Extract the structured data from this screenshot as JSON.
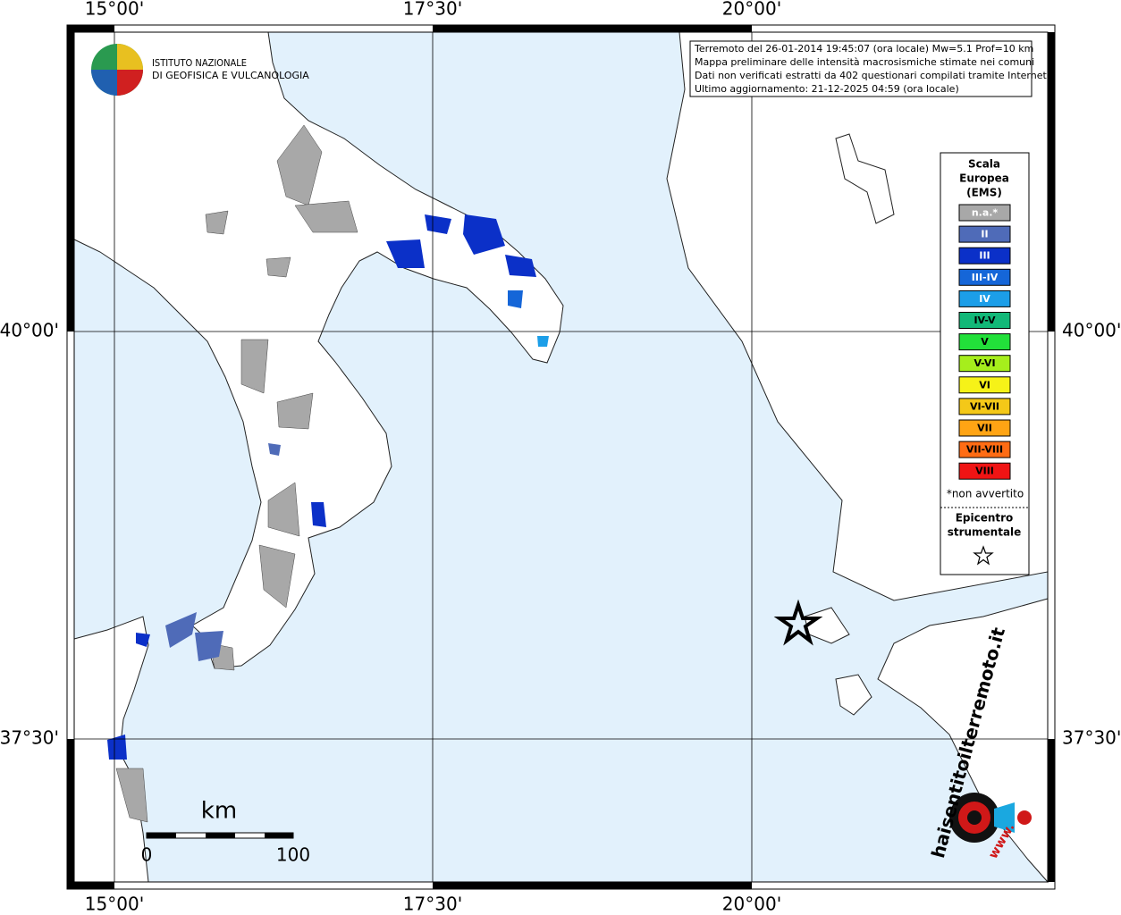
{
  "header": {
    "institute": [
      "ISTITUTO NAZIONALE",
      "DI GEOFISICA E VULCANOLOGIA"
    ]
  },
  "graticule": {
    "top": [
      "15°00'",
      "17°30'",
      "20°00'"
    ],
    "bottom": [
      "15°00'",
      "17°30'",
      "20°00'"
    ],
    "left": [
      "40°00'",
      "37°30'"
    ],
    "right": [
      "40°00'",
      "37°30'"
    ]
  },
  "info_box": [
    "Terremoto del 26-01-2014 19:45:07 (ora locale) Mw=5.1 Prof=10 km",
    "Mappa preliminare delle intensità macrosismiche stimate nei comuni",
    "Dati non verificati estratti da 402 questionari compilati tramite Internet.",
    "Ultimo aggiornamento: 21-12-2025 04:59 (ora locale)"
  ],
  "legend": {
    "title": [
      "Scala",
      "Europea",
      "(EMS)"
    ],
    "classes": [
      {
        "label": "n.a.*",
        "color": "#a8a8a8"
      },
      {
        "label": "II",
        "color": "#4f6bb8"
      },
      {
        "label": "III",
        "color": "#0b30c8"
      },
      {
        "label": "III-IV",
        "color": "#1566d8"
      },
      {
        "label": "IV",
        "color": "#1c9ee8"
      },
      {
        "label": "IV-V",
        "color": "#12b878"
      },
      {
        "label": "V",
        "color": "#22e03a"
      },
      {
        "label": "V-VI",
        "color": "#a6ee1c"
      },
      {
        "label": "VI",
        "color": "#f6f218"
      },
      {
        "label": "VI-VII",
        "color": "#f4c818"
      },
      {
        "label": "VII",
        "color": "#ffa414"
      },
      {
        "label": "VII-VIII",
        "color": "#ff6c14"
      },
      {
        "label": "VIII",
        "color": "#f01414"
      }
    ],
    "note": "*non avvertito",
    "epicenter": [
      "Epicentro",
      "strumentale"
    ]
  },
  "scale_bar": {
    "unit": "km",
    "labels": [
      "0",
      "100"
    ]
  },
  "watermark": {
    "site": "haisentitoilterremoto.it",
    "prefix": "www."
  }
}
